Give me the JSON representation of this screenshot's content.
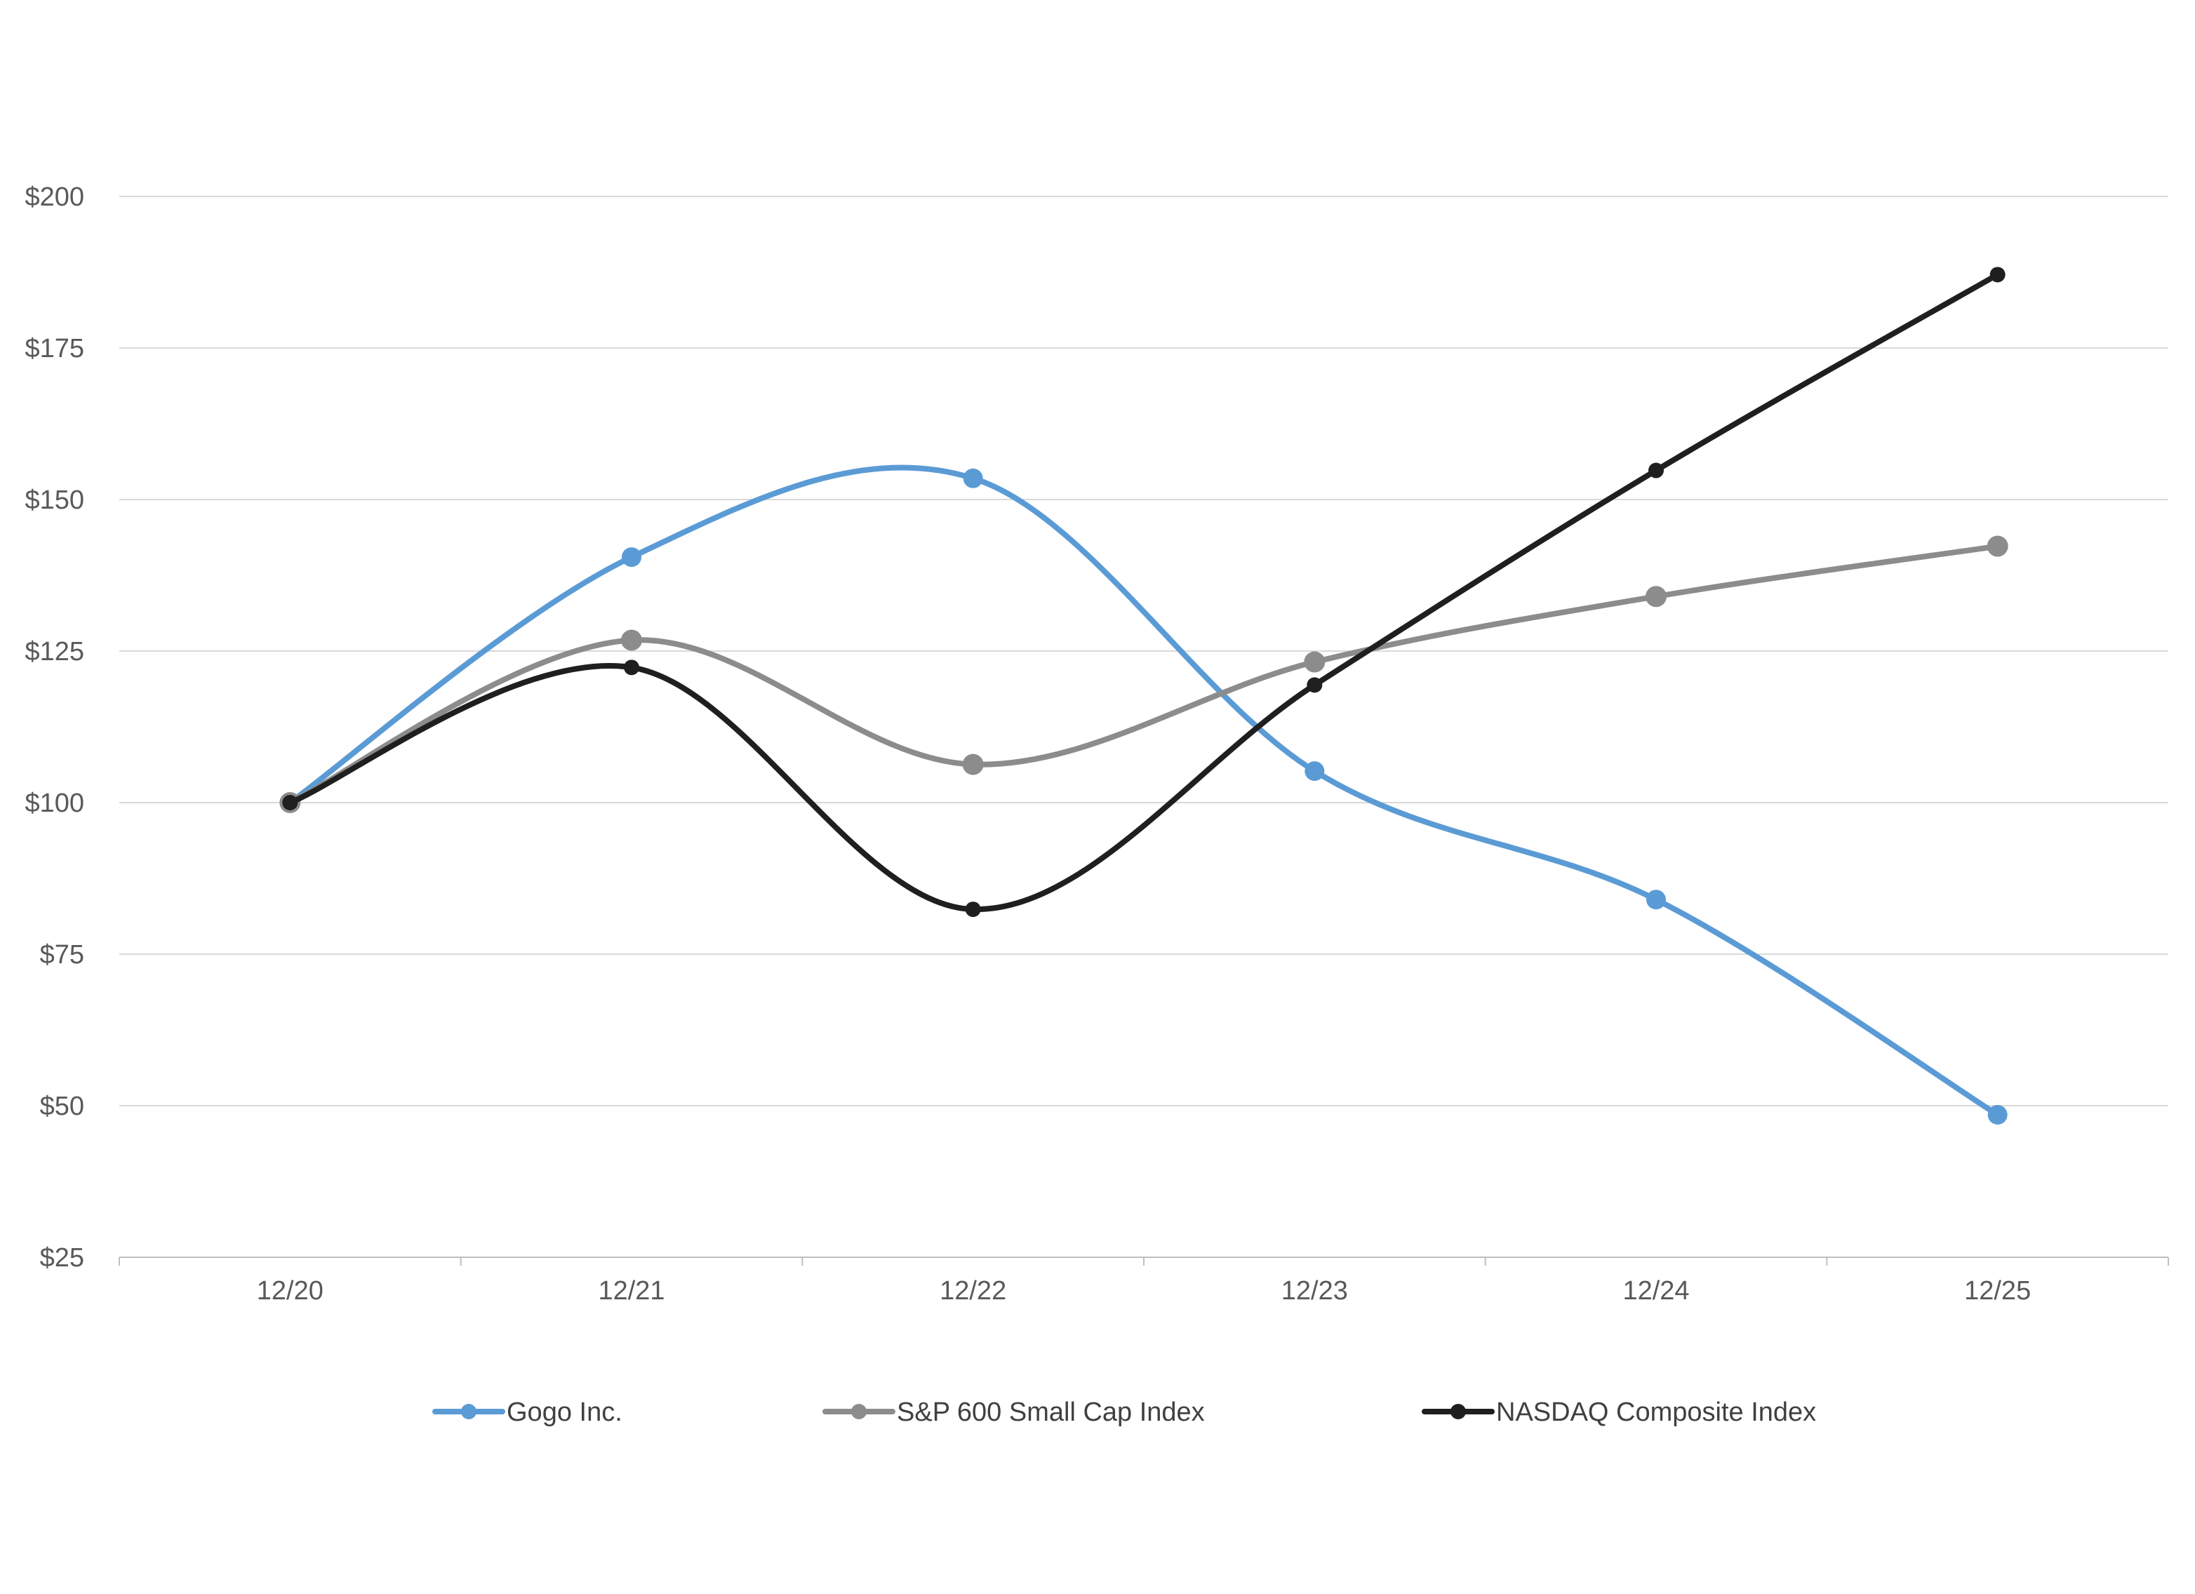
{
  "chart_data": {
    "type": "line",
    "categories": [
      "12/20",
      "12/21",
      "12/22",
      "12/23",
      "12/24",
      "12/25"
    ],
    "series": [
      {
        "name": "Gogo Inc.",
        "color": "#5b9bd5",
        "values": [
          100,
          140.5,
          153.5,
          105.2,
          84.0,
          48.5
        ]
      },
      {
        "name": "S&P 600 Small Cap Index",
        "color": "#8c8c8c",
        "values": [
          100,
          126.8,
          106.3,
          123.2,
          134.0,
          142.3
        ]
      },
      {
        "name": "NASDAQ Composite Index",
        "color": "#1f1f1f",
        "values": [
          100,
          122.3,
          82.4,
          119.4,
          154.8,
          187.1
        ]
      }
    ],
    "ylim": [
      25,
      200
    ],
    "yticks": [
      25,
      50,
      75,
      100,
      125,
      150,
      175,
      200
    ],
    "ytick_labels": [
      "$25",
      "$50",
      "$75",
      "$100",
      "$125",
      "$150",
      "$175",
      "$200"
    ],
    "grid": true,
    "legend_position": "bottom",
    "smooth": true
  }
}
